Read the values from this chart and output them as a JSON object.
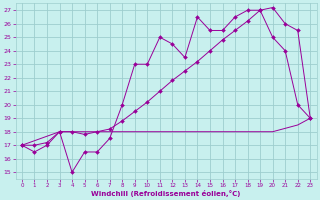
{
  "xlabel": "Windchill (Refroidissement éolien,°C)",
  "background_color": "#c8f0ee",
  "grid_color": "#9ecece",
  "line_color": "#990099",
  "xlim": [
    -0.5,
    23.5
  ],
  "ylim": [
    14.5,
    27.5
  ],
  "xticks": [
    0,
    1,
    2,
    3,
    4,
    5,
    6,
    7,
    8,
    9,
    10,
    11,
    12,
    13,
    14,
    15,
    16,
    17,
    18,
    19,
    20,
    21,
    22,
    23
  ],
  "yticks": [
    15,
    16,
    17,
    18,
    19,
    20,
    21,
    22,
    23,
    24,
    25,
    26,
    27
  ],
  "series1_x": [
    0,
    1,
    2,
    3,
    4,
    5,
    6,
    7,
    8,
    9,
    10,
    11,
    12,
    13,
    14,
    15,
    16,
    17,
    18,
    19,
    20,
    21,
    22,
    23
  ],
  "series1_y": [
    17.0,
    16.5,
    17.0,
    18.0,
    15.0,
    16.5,
    16.5,
    17.5,
    20.0,
    23.0,
    23.0,
    25.0,
    24.5,
    23.5,
    26.5,
    25.5,
    25.5,
    26.5,
    27.0,
    27.0,
    25.0,
    24.0,
    20.0,
    19.0
  ],
  "series2_x": [
    0,
    1,
    2,
    3,
    4,
    5,
    6,
    7,
    8,
    9,
    10,
    11,
    12,
    13,
    14,
    15,
    16,
    17,
    18,
    19,
    20,
    21,
    22,
    23
  ],
  "series2_y": [
    17.0,
    17.0,
    17.2,
    18.0,
    18.0,
    17.8,
    18.0,
    18.2,
    18.8,
    19.5,
    20.2,
    21.0,
    21.8,
    22.5,
    23.2,
    24.0,
    24.8,
    25.5,
    26.2,
    27.0,
    27.2,
    26.0,
    25.5,
    19.0
  ],
  "series3_x": [
    0,
    3,
    10,
    14,
    15,
    16,
    17,
    18,
    19,
    20,
    22,
    23
  ],
  "series3_y": [
    17.0,
    18.0,
    18.0,
    18.0,
    18.0,
    18.0,
    18.0,
    18.0,
    18.0,
    18.0,
    18.5,
    19.0
  ]
}
